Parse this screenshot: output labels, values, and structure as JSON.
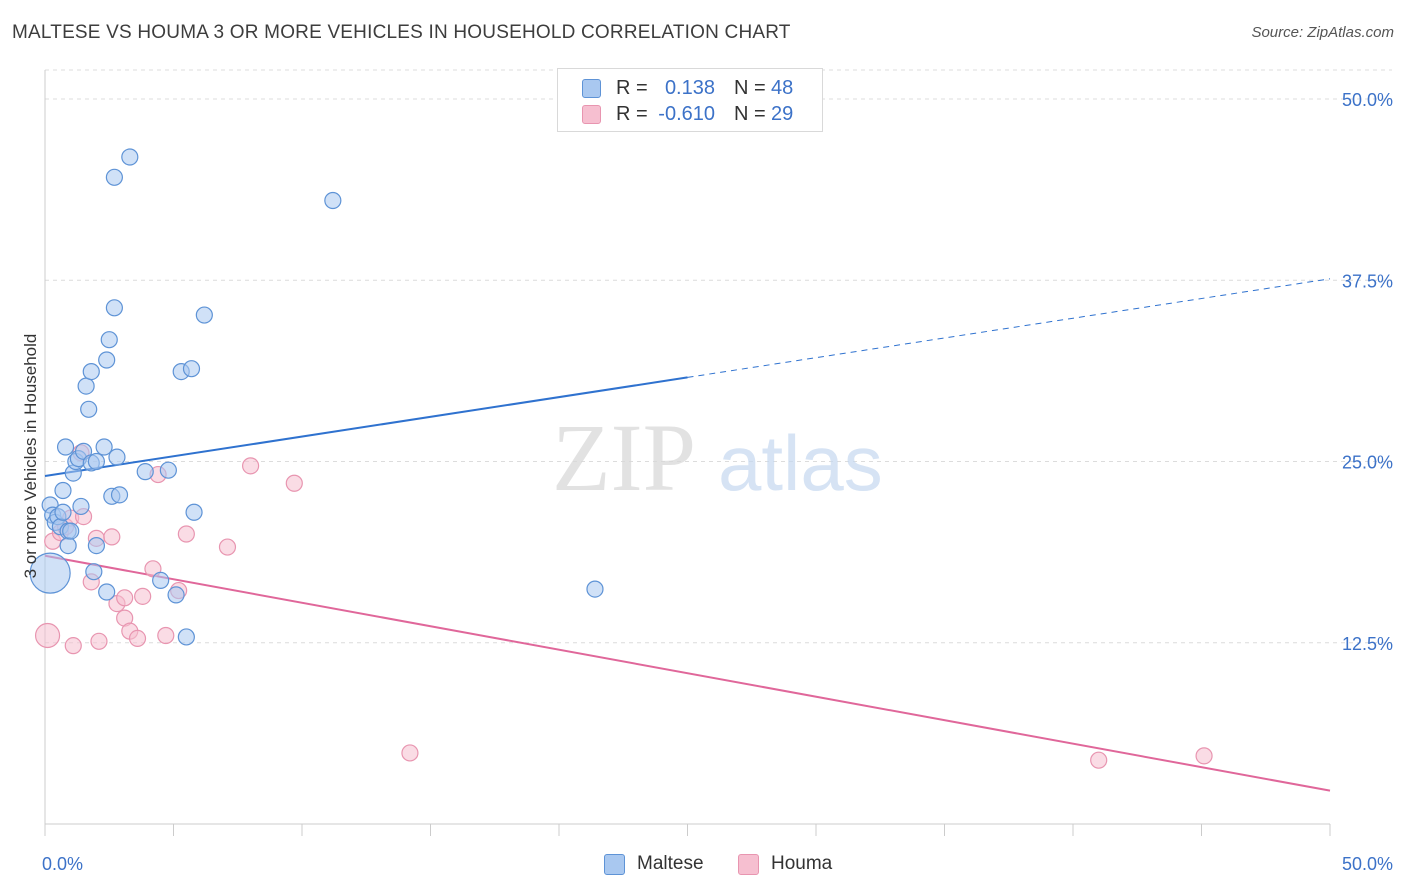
{
  "title": "MALTESE VS HOUMA 3 OR MORE VEHICLES IN HOUSEHOLD CORRELATION CHART",
  "source": "Source: ZipAtlas.com",
  "watermark": {
    "zip": "ZIP",
    "atlas": "atlas"
  },
  "legend": {
    "r_label": "R =",
    "n_label": "N =",
    "rows": [
      {
        "name": "Maltese",
        "r": "0.138",
        "n": "48"
      },
      {
        "name": "Houma",
        "r": "-0.610",
        "n": "29"
      }
    ]
  },
  "colors": {
    "maltese_fill": "#a9c8f0",
    "maltese_stroke": "#5e93d6",
    "maltese_line": "#2f72cf",
    "houma_fill": "#f6bfd0",
    "houma_stroke": "#e895b0",
    "houma_line": "#e0679a",
    "tick_label": "#3c72c8",
    "grid": "#dcdcdc"
  },
  "chart_data": {
    "type": "scatter",
    "title": "MALTESE VS HOUMA 3 OR MORE VEHICLES IN HOUSEHOLD CORRELATION CHART",
    "xlabel": "",
    "ylabel": "3 or more Vehicles in Household",
    "xlim": [
      0,
      50
    ],
    "ylim": [
      0,
      52
    ],
    "x_tick_labels": [
      {
        "value": 0,
        "label": "0.0%"
      },
      {
        "value": 50,
        "label": "50.0%"
      }
    ],
    "y_tick_labels": [
      {
        "value": 12.5,
        "label": "12.5%"
      },
      {
        "value": 25,
        "label": "25.0%"
      },
      {
        "value": 37.5,
        "label": "37.5%"
      },
      {
        "value": 50,
        "label": "50.0%"
      }
    ],
    "series": [
      {
        "name": "Maltese",
        "r": 0.138,
        "n": 48,
        "trend": {
          "x0": 0,
          "y0": 24.0,
          "x1": 25,
          "y1": 30.8,
          "dashed_to_x": 50,
          "dashed_to_y": 37.6
        },
        "points": [
          [
            0.2,
            17.3,
            20
          ],
          [
            0.2,
            22.0,
            8
          ],
          [
            0.3,
            21.3,
            8
          ],
          [
            0.4,
            20.8,
            8
          ],
          [
            0.5,
            21.2,
            8
          ],
          [
            0.6,
            20.5,
            8
          ],
          [
            0.7,
            21.5,
            8
          ],
          [
            0.7,
            23.0,
            8
          ],
          [
            0.8,
            26.0,
            8
          ],
          [
            0.9,
            20.2,
            8
          ],
          [
            0.9,
            19.2,
            8
          ],
          [
            1.0,
            20.2,
            8
          ],
          [
            1.1,
            24.2,
            8
          ],
          [
            1.2,
            25.0,
            8
          ],
          [
            1.3,
            25.2,
            8
          ],
          [
            1.4,
            21.9,
            8
          ],
          [
            1.5,
            25.7,
            8
          ],
          [
            1.6,
            30.2,
            8
          ],
          [
            1.7,
            28.6,
            8
          ],
          [
            1.8,
            24.9,
            8
          ],
          [
            1.8,
            31.2,
            8
          ],
          [
            1.9,
            17.4,
            8
          ],
          [
            2.0,
            25.0,
            8
          ],
          [
            2.0,
            19.2,
            8
          ],
          [
            2.3,
            26.0,
            8
          ],
          [
            2.4,
            32.0,
            8
          ],
          [
            2.4,
            16.0,
            8
          ],
          [
            2.5,
            33.4,
            8
          ],
          [
            2.6,
            22.6,
            8
          ],
          [
            2.7,
            44.6,
            8
          ],
          [
            2.7,
            35.6,
            8
          ],
          [
            2.8,
            25.3,
            8
          ],
          [
            2.9,
            22.7,
            8
          ],
          [
            3.3,
            46.0,
            8
          ],
          [
            3.9,
            24.3,
            8
          ],
          [
            4.5,
            16.8,
            8
          ],
          [
            4.8,
            24.4,
            8
          ],
          [
            5.1,
            15.8,
            8
          ],
          [
            5.3,
            31.2,
            8
          ],
          [
            5.5,
            12.9,
            8
          ],
          [
            5.7,
            31.4,
            8
          ],
          [
            5.8,
            21.5,
            8
          ],
          [
            6.2,
            35.1,
            8
          ],
          [
            11.2,
            43.0,
            8
          ],
          [
            21.4,
            16.2,
            8
          ]
        ]
      },
      {
        "name": "Houma",
        "r": -0.61,
        "n": 29,
        "trend": {
          "x0": 0,
          "y0": 18.5,
          "x1": 50,
          "y1": 2.3
        },
        "points": [
          [
            0.1,
            13.0,
            12
          ],
          [
            0.3,
            19.5,
            8
          ],
          [
            0.6,
            20.1,
            8
          ],
          [
            0.8,
            20.5,
            8
          ],
          [
            1.0,
            21.1,
            8
          ],
          [
            1.1,
            12.3,
            8
          ],
          [
            1.4,
            25.6,
            8
          ],
          [
            1.5,
            21.2,
            8
          ],
          [
            1.8,
            16.7,
            8
          ],
          [
            2.0,
            19.7,
            8
          ],
          [
            2.1,
            12.6,
            8
          ],
          [
            2.6,
            19.8,
            8
          ],
          [
            2.8,
            15.2,
            8
          ],
          [
            3.1,
            15.6,
            8
          ],
          [
            3.1,
            14.2,
            8
          ],
          [
            3.3,
            13.3,
            8
          ],
          [
            3.6,
            12.8,
            8
          ],
          [
            3.8,
            15.7,
            8
          ],
          [
            4.2,
            17.6,
            8
          ],
          [
            4.4,
            24.1,
            8
          ],
          [
            4.7,
            13.0,
            8
          ],
          [
            5.2,
            16.1,
            8
          ],
          [
            5.5,
            20.0,
            8
          ],
          [
            7.1,
            19.1,
            8
          ],
          [
            8.0,
            24.7,
            8
          ],
          [
            9.7,
            23.5,
            8
          ],
          [
            14.2,
            4.9,
            8
          ],
          [
            41.0,
            4.4,
            8
          ],
          [
            45.1,
            4.7,
            8
          ]
        ]
      }
    ]
  }
}
